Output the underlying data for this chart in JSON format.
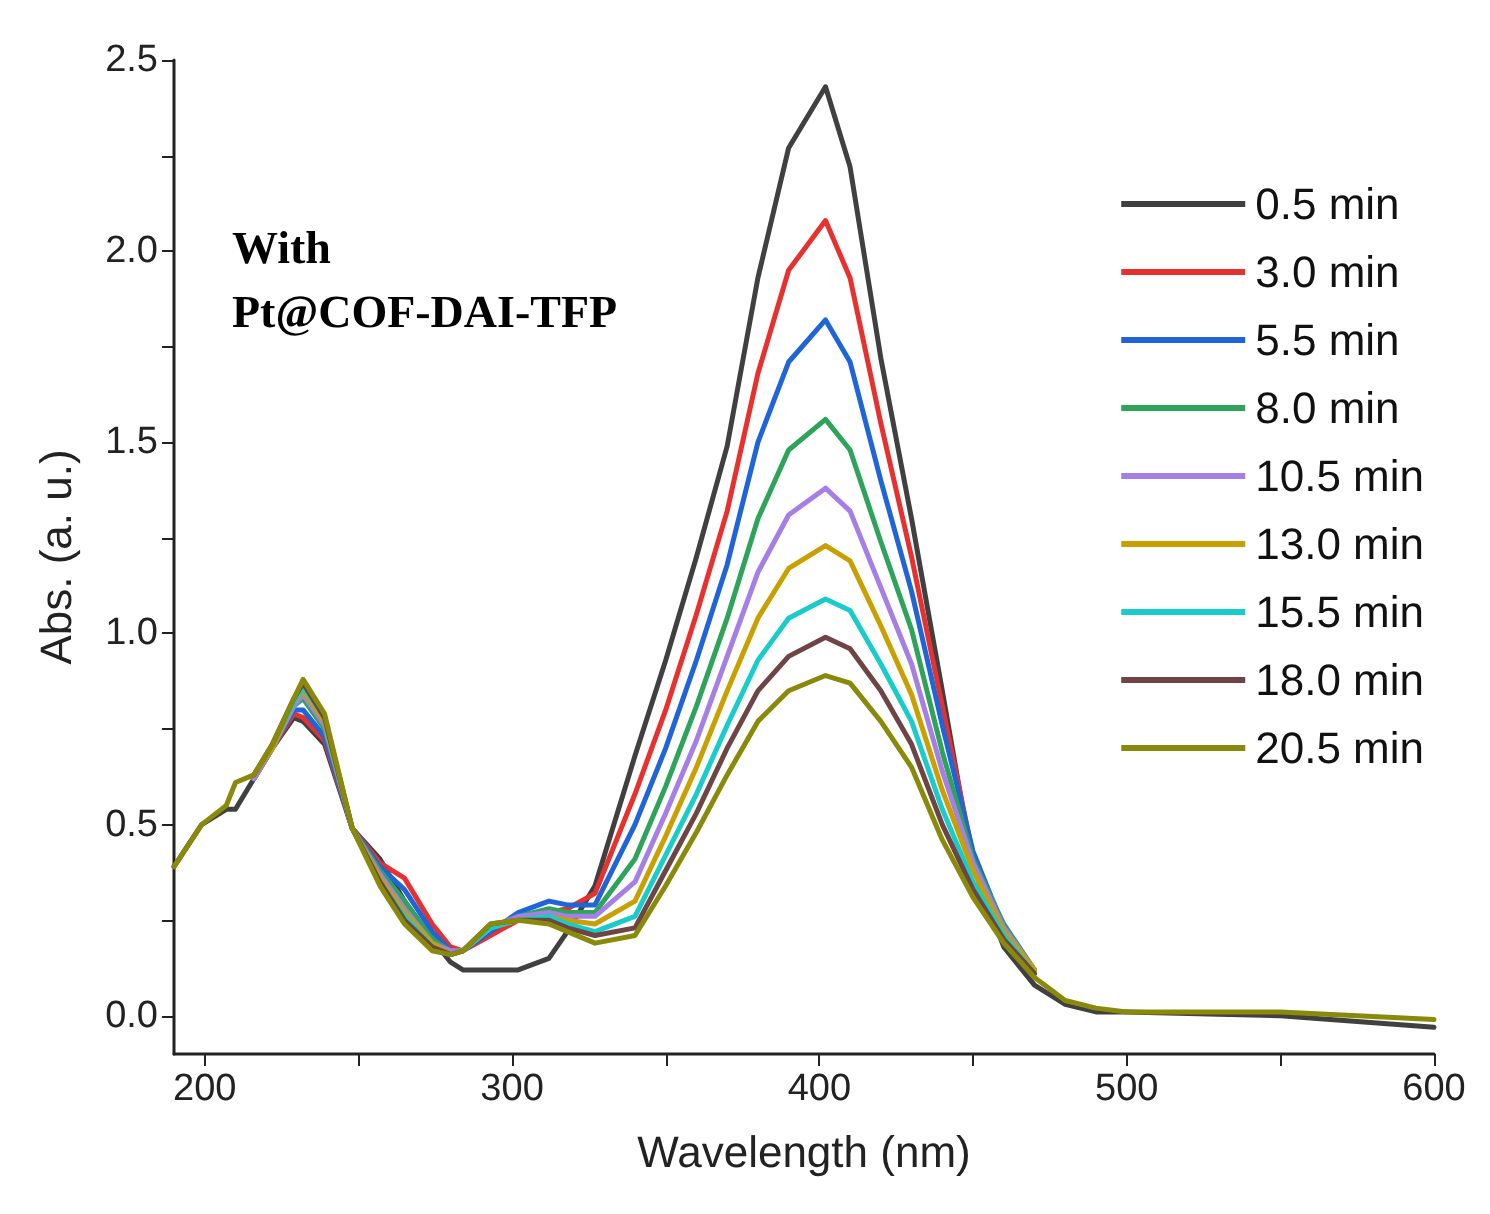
{
  "chart_data": {
    "type": "line",
    "xlabel": "Wavelength (nm)",
    "ylabel": "Abs. (a. u.)",
    "annotations": [
      "With\nPt@COF-DAI-TFP"
    ],
    "x": [
      190,
      199,
      207,
      210,
      216,
      222,
      229,
      232,
      239,
      248,
      257,
      265,
      274,
      280,
      284,
      293,
      302,
      312,
      318,
      327,
      340,
      350,
      360,
      370,
      380,
      390,
      402,
      410,
      420,
      430,
      440,
      450,
      460,
      470,
      480,
      490,
      500,
      550,
      600
    ],
    "series": [
      {
        "name": "0.5 min",
        "color": "#404040",
        "values": [
          0.39,
          0.5,
          0.54,
          0.54,
          0.62,
          0.7,
          0.78,
          0.77,
          0.71,
          0.49,
          0.41,
          0.3,
          0.2,
          0.14,
          0.12,
          0.12,
          0.12,
          0.15,
          0.22,
          0.34,
          0.68,
          0.93,
          1.2,
          1.49,
          1.93,
          2.27,
          2.43,
          2.22,
          1.72,
          1.3,
          0.85,
          0.39,
          0.18,
          0.08,
          0.03,
          0.01,
          0.01,
          0,
          -0.03
        ]
      },
      {
        "name": "3.0 min",
        "color": "#e8312f",
        "values": [
          null,
          null,
          null,
          null,
          0.62,
          0.7,
          0.79,
          0.78,
          0.72,
          0.49,
          0.4,
          0.36,
          0.24,
          0.18,
          0.17,
          0.21,
          0.25,
          0.27,
          0.28,
          0.32,
          0.58,
          0.8,
          1.05,
          1.32,
          1.68,
          1.95,
          2.08,
          1.93,
          1.55,
          1.2,
          0.81,
          0.42,
          0.22,
          null,
          null,
          null,
          null,
          null,
          null
        ]
      },
      {
        "name": "5.5 min",
        "color": "#1f64d8",
        "values": [
          null,
          null,
          null,
          null,
          0.62,
          0.7,
          0.8,
          0.8,
          0.73,
          0.49,
          0.39,
          0.33,
          0.22,
          0.17,
          0.17,
          0.22,
          0.27,
          0.3,
          0.29,
          0.29,
          0.5,
          0.7,
          0.93,
          1.18,
          1.5,
          1.71,
          1.82,
          1.71,
          1.4,
          1.11,
          0.76,
          0.43,
          0.23,
          0.12,
          null,
          null,
          null,
          null,
          null
        ]
      },
      {
        "name": "8.0 min",
        "color": "#2ea35a",
        "values": [
          null,
          null,
          null,
          null,
          0.62,
          0.7,
          0.81,
          0.83,
          0.75,
          0.49,
          0.38,
          0.3,
          0.2,
          0.17,
          0.17,
          0.23,
          0.26,
          0.28,
          0.27,
          0.27,
          0.41,
          0.6,
          0.81,
          1.04,
          1.3,
          1.48,
          1.56,
          1.48,
          1.24,
          1.01,
          0.69,
          0.41,
          0.24,
          0.12,
          null,
          null,
          null,
          null,
          null
        ]
      },
      {
        "name": "10.5 min",
        "color": "#a57ee6",
        "values": [
          null,
          null,
          null,
          null,
          0.62,
          0.7,
          0.81,
          0.84,
          0.76,
          0.49,
          0.37,
          0.28,
          0.19,
          0.17,
          0.17,
          0.23,
          0.26,
          0.27,
          0.26,
          0.26,
          0.35,
          0.53,
          0.72,
          0.94,
          1.16,
          1.31,
          1.38,
          1.32,
          1.12,
          0.92,
          0.64,
          0.4,
          0.23,
          0.12,
          null,
          null,
          null,
          null,
          null
        ]
      },
      {
        "name": "13.0 min",
        "color": "#c8a000",
        "values": [
          null,
          null,
          null,
          null,
          0.63,
          0.7,
          0.82,
          0.85,
          0.77,
          0.49,
          0.36,
          0.27,
          0.19,
          0.16,
          0.17,
          0.23,
          0.25,
          0.26,
          0.25,
          0.24,
          0.3,
          0.47,
          0.65,
          0.85,
          1.04,
          1.17,
          1.23,
          1.19,
          1.02,
          0.84,
          0.59,
          0.38,
          0.22,
          0.12,
          null,
          null,
          null,
          null,
          null
        ]
      },
      {
        "name": "15.5 min",
        "color": "#19cccc",
        "values": [
          null,
          null,
          null,
          null,
          null,
          0.71,
          0.82,
          0.86,
          0.78,
          0.49,
          0.35,
          0.26,
          0.18,
          0.16,
          0.17,
          0.23,
          0.25,
          0.26,
          0.24,
          0.22,
          0.26,
          0.42,
          0.58,
          0.76,
          0.93,
          1.04,
          1.09,
          1.06,
          0.92,
          0.77,
          0.54,
          0.35,
          0.21,
          0.11,
          null,
          null,
          null,
          null,
          null
        ]
      },
      {
        "name": "18.0 min",
        "color": "#6e4444",
        "values": [
          null,
          null,
          null,
          null,
          0.63,
          0.71,
          0.83,
          0.87,
          0.78,
          0.49,
          0.35,
          0.25,
          0.18,
          0.16,
          0.17,
          0.24,
          0.25,
          0.25,
          0.23,
          0.21,
          0.23,
          0.38,
          0.53,
          0.7,
          0.85,
          0.94,
          0.99,
          0.96,
          0.85,
          0.71,
          0.5,
          0.33,
          0.2,
          0.11,
          null,
          null,
          null,
          null,
          null
        ]
      },
      {
        "name": "20.5 min",
        "color": "#8a8a0a",
        "values": [
          0.39,
          0.5,
          0.55,
          0.61,
          0.63,
          0.71,
          0.83,
          0.88,
          0.79,
          0.49,
          0.34,
          0.24,
          0.17,
          0.16,
          0.17,
          0.24,
          0.25,
          0.24,
          0.22,
          0.19,
          0.21,
          0.34,
          0.48,
          0.63,
          0.77,
          0.85,
          0.89,
          0.87,
          0.77,
          0.65,
          0.46,
          0.31,
          0.19,
          0.1,
          0.04,
          0.02,
          0.01,
          0.01,
          -0.01
        ]
      }
    ],
    "xlim": [
      190,
      600
    ],
    "xticks": [
      200,
      {
        "value": 250,
        "label": null
      },
      300,
      {
        "value": 350,
        "label": null
      },
      400,
      {
        "value": 450,
        "label": null
      },
      500,
      {
        "value": 550,
        "label": null
      },
      600
    ],
    "ylim": [
      -0.1,
      2.5
    ],
    "yticks": [
      {
        "value": 0,
        "label": "0.0"
      },
      {
        "value": 0.25,
        "label": null
      },
      {
        "value": 0.5,
        "label": "0.5"
      },
      {
        "value": 0.75,
        "label": null
      },
      {
        "value": 1,
        "label": "1.0"
      },
      {
        "value": 1.25,
        "label": null
      },
      {
        "value": 1.5,
        "label": "1.5"
      },
      {
        "value": 1.75,
        "label": null
      },
      {
        "value": 2,
        "label": "2.0"
      },
      {
        "value": 2.25,
        "label": null
      },
      {
        "value": 2.5,
        "label": "2.5"
      }
    ],
    "grid": false,
    "legend": "top right",
    "marker": "none",
    "line_style": "solid"
  }
}
